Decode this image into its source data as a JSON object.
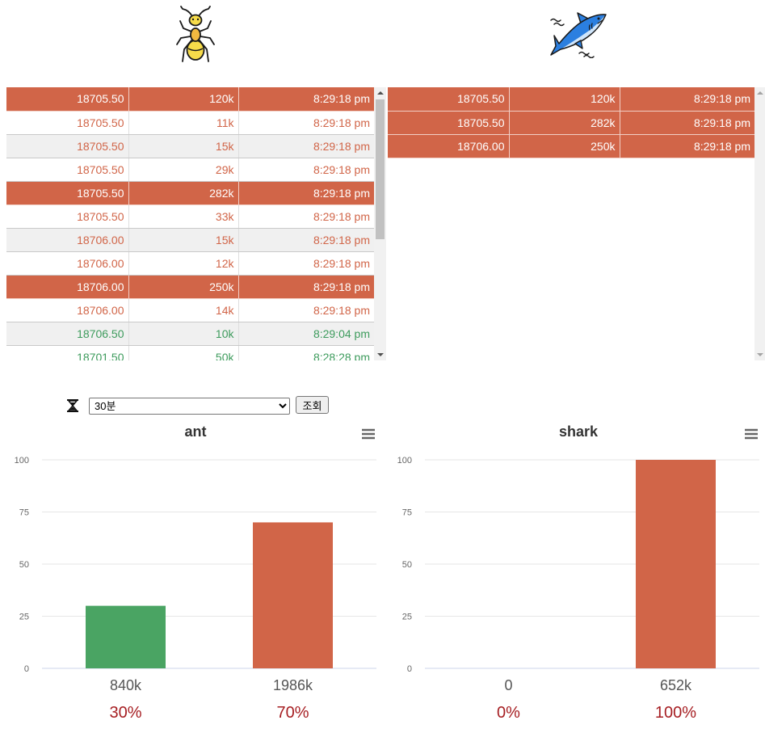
{
  "icons": {
    "ant_logo": "ant-icon",
    "shark_logo": "shark-icon",
    "timer": "hourglass-icon",
    "chart_menu": "hamburger-menu-icon",
    "scroll_up": "triangle-up-icon",
    "scroll_down": "triangle-down-icon"
  },
  "colors": {
    "red_text": "#d16548",
    "green_text": "#3d9b5c",
    "stripe": "#f0f0f0",
    "bar_green": "#4aa463",
    "bar_red": "#d16548",
    "percent_text": "#a61e22"
  },
  "ant_trades": {
    "rows": [
      {
        "price": "18705.50",
        "volume": "120k",
        "time": "8:29:18 pm",
        "highlight": true,
        "color": "#d16548"
      },
      {
        "price": "18705.50",
        "volume": "11k",
        "time": "8:29:18 pm",
        "highlight": false,
        "color": "#d16548"
      },
      {
        "price": "18705.50",
        "volume": "15k",
        "time": "8:29:18 pm",
        "highlight": false,
        "color": "#d16548"
      },
      {
        "price": "18705.50",
        "volume": "29k",
        "time": "8:29:18 pm",
        "highlight": false,
        "color": "#d16548"
      },
      {
        "price": "18705.50",
        "volume": "282k",
        "time": "8:29:18 pm",
        "highlight": true,
        "color": "#d16548"
      },
      {
        "price": "18705.50",
        "volume": "33k",
        "time": "8:29:18 pm",
        "highlight": false,
        "color": "#d16548"
      },
      {
        "price": "18706.00",
        "volume": "15k",
        "time": "8:29:18 pm",
        "highlight": false,
        "color": "#d16548"
      },
      {
        "price": "18706.00",
        "volume": "12k",
        "time": "8:29:18 pm",
        "highlight": false,
        "color": "#d16548"
      },
      {
        "price": "18706.00",
        "volume": "250k",
        "time": "8:29:18 pm",
        "highlight": true,
        "color": "#d16548"
      },
      {
        "price": "18706.00",
        "volume": "14k",
        "time": "8:29:18 pm",
        "highlight": false,
        "color": "#d16548"
      },
      {
        "price": "18706.50",
        "volume": "10k",
        "time": "8:29:04 pm",
        "highlight": false,
        "color": "#3d9b5c"
      },
      {
        "price": "18701.50",
        "volume": "50k",
        "time": "8:28:28 pm",
        "highlight": false,
        "color": "#3d9b5c"
      }
    ]
  },
  "shark_trades": {
    "rows": [
      {
        "price": "18705.50",
        "volume": "120k",
        "time": "8:29:18 pm",
        "highlight": true,
        "color": "#d16548"
      },
      {
        "price": "18705.50",
        "volume": "282k",
        "time": "8:29:18 pm",
        "highlight": true,
        "color": "#d16548"
      },
      {
        "price": "18706.00",
        "volume": "250k",
        "time": "8:29:18 pm",
        "highlight": true,
        "color": "#d16548"
      }
    ]
  },
  "controls": {
    "interval_selected": "30분",
    "query_button": "조회"
  },
  "chart_data": [
    {
      "type": "bar",
      "title": "ant",
      "categories": [
        "840k",
        "1986k"
      ],
      "values": [
        30,
        70
      ],
      "percent_labels": [
        "30%",
        "70%"
      ],
      "colors": [
        "#4aa463",
        "#d16548"
      ],
      "ylim": [
        0,
        100
      ],
      "yticks": [
        0,
        25,
        50,
        75,
        100
      ],
      "grid": true,
      "legend": "none"
    },
    {
      "type": "bar",
      "title": "shark",
      "categories": [
        "0",
        "652k"
      ],
      "values": [
        0,
        100
      ],
      "percent_labels": [
        "0%",
        "100%"
      ],
      "colors": [
        "#4aa463",
        "#d16548"
      ],
      "ylim": [
        0,
        100
      ],
      "yticks": [
        0,
        25,
        50,
        75,
        100
      ],
      "grid": true,
      "legend": "none"
    }
  ]
}
